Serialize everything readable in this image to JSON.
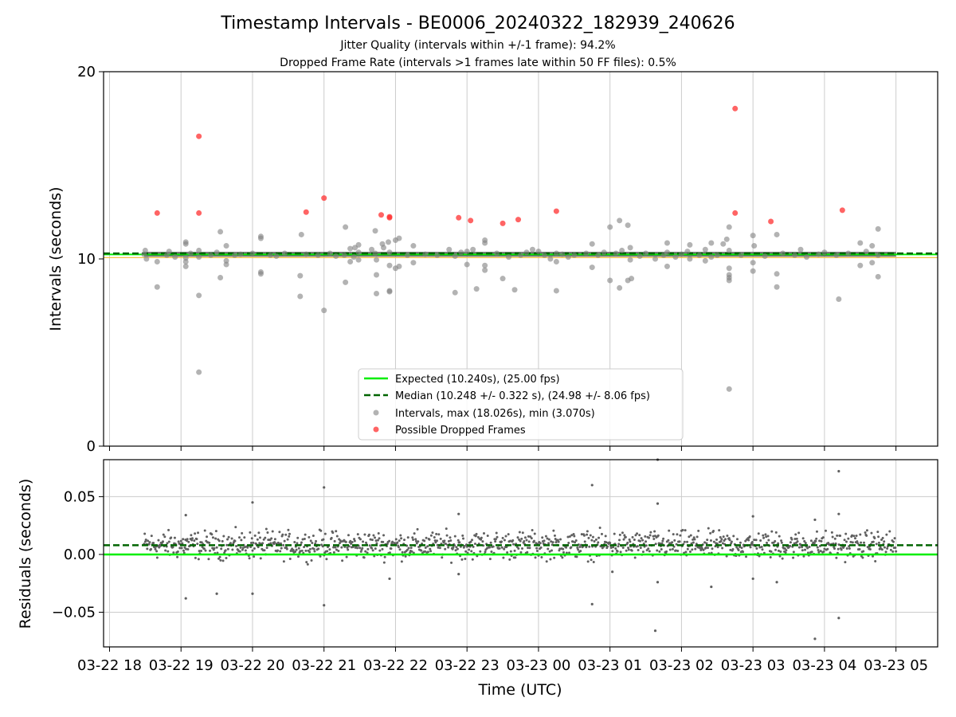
{
  "title": "Timestamp Intervals - BE0006_20240322_182939_240626",
  "subtitle_1": "Jitter Quality (intervals within +/-1 frame): 94.2%",
  "subtitle_2": "Dropped Frame Rate (intervals >1 frames late within 50 FF files): 0.5%",
  "colors": {
    "expected": "#00ee00",
    "median": "#006400",
    "intervals": "#808080",
    "dropped": "#ff3030",
    "tolerance": "#f5c242",
    "grid": "#cccccc",
    "residual_points": "#606060"
  },
  "chart_data": [
    {
      "type": "scatter",
      "name": "intervals",
      "ylabel": "Intervals (seconds)",
      "ylim": [
        0,
        20
      ],
      "yticks": [
        "0",
        "10",
        "20"
      ],
      "grid": "vertical",
      "legend_position": "lower-center",
      "expected_value": 10.24,
      "median_value": 10.248,
      "legend": {
        "expected": "Expected (10.240s), (25.00 fps)",
        "median": "Median (10.248 +/- 0.322 s), (24.98 +/- 8.06 fps)",
        "intervals": "Intervals, max (18.026s), min (3.070s)",
        "dropped": "Possible Dropped Frames"
      },
      "series": [
        {
          "name": "Intervals, max (18.026s), min (3.070s)",
          "points": [
            [
              "2024-03-22 18:29",
              10.25
            ],
            [
              "2024-03-22 18:30",
              10.45
            ],
            [
              "2024-03-22 18:31",
              10.0
            ],
            [
              "2024-03-22 18:40",
              8.5
            ],
            [
              "2024-03-22 18:40",
              9.85
            ],
            [
              "2024-03-22 18:48",
              10.2
            ],
            [
              "2024-03-22 18:50",
              10.4
            ],
            [
              "2024-03-22 18:55",
              10.1
            ],
            [
              "2024-03-22 19:04",
              10.9
            ],
            [
              "2024-03-22 19:04",
              10.8
            ],
            [
              "2024-03-22 19:04",
              10.05
            ],
            [
              "2024-03-22 19:04",
              9.85
            ],
            [
              "2024-03-22 19:04",
              9.6
            ],
            [
              "2024-03-22 19:08",
              10.3
            ],
            [
              "2024-03-22 19:15",
              3.95
            ],
            [
              "2024-03-22 19:15",
              8.05
            ],
            [
              "2024-03-22 19:15",
              10.1
            ],
            [
              "2024-03-22 19:15",
              10.45
            ],
            [
              "2024-03-22 19:25",
              10.2
            ],
            [
              "2024-03-22 19:30",
              10.35
            ],
            [
              "2024-03-22 19:33",
              9.0
            ],
            [
              "2024-03-22 19:33",
              11.45
            ],
            [
              "2024-03-22 19:38",
              10.7
            ],
            [
              "2024-03-22 19:38",
              9.7
            ],
            [
              "2024-03-22 19:38",
              9.9
            ],
            [
              "2024-03-22 19:45",
              10.2
            ],
            [
              "2024-03-22 19:50",
              10.25
            ],
            [
              "2024-03-22 20:00",
              10.3
            ],
            [
              "2024-03-22 20:07",
              11.2
            ],
            [
              "2024-03-22 20:07",
              11.1
            ],
            [
              "2024-03-22 20:07",
              9.3
            ],
            [
              "2024-03-22 20:07",
              9.2
            ],
            [
              "2024-03-22 20:15",
              10.2
            ],
            [
              "2024-03-22 20:20",
              10.15
            ],
            [
              "2024-03-22 20:27",
              10.3
            ],
            [
              "2024-03-22 20:40",
              8.0
            ],
            [
              "2024-03-22 20:40",
              9.1
            ],
            [
              "2024-03-22 20:41",
              11.3
            ],
            [
              "2024-03-22 20:45",
              10.25
            ],
            [
              "2024-03-22 20:55",
              10.2
            ],
            [
              "2024-03-22 21:00",
              7.25
            ],
            [
              "2024-03-22 21:05",
              10.3
            ],
            [
              "2024-03-22 21:10",
              10.15
            ],
            [
              "2024-03-22 21:17",
              10.2
            ],
            [
              "2024-03-22 21:18",
              8.75
            ],
            [
              "2024-03-22 21:18",
              11.7
            ],
            [
              "2024-03-22 21:22",
              10.55
            ],
            [
              "2024-03-22 21:22",
              9.85
            ],
            [
              "2024-03-22 21:25",
              10.1
            ],
            [
              "2024-03-22 21:26",
              10.6
            ],
            [
              "2024-03-22 21:29",
              10.75
            ],
            [
              "2024-03-22 21:29",
              10.35
            ],
            [
              "2024-03-22 21:29",
              9.95
            ],
            [
              "2024-03-22 21:40",
              10.5
            ],
            [
              "2024-03-22 21:43",
              11.5
            ],
            [
              "2024-03-22 21:43",
              10.3
            ],
            [
              "2024-03-22 21:44",
              9.15
            ],
            [
              "2024-03-22 21:44",
              8.15
            ],
            [
              "2024-03-22 21:44",
              9.95
            ],
            [
              "2024-03-22 21:49",
              10.8
            ],
            [
              "2024-03-22 21:50",
              10.6
            ],
            [
              "2024-03-22 21:54",
              10.9
            ],
            [
              "2024-03-22 21:55",
              8.25
            ],
            [
              "2024-03-22 21:55",
              8.3
            ],
            [
              "2024-03-22 21:55",
              9.65
            ],
            [
              "2024-03-22 21:55",
              10.35
            ],
            [
              "2024-03-22 22:00",
              11.0
            ],
            [
              "2024-03-22 22:00",
              9.5
            ],
            [
              "2024-03-22 22:03",
              11.1
            ],
            [
              "2024-03-22 22:03",
              9.6
            ],
            [
              "2024-03-22 22:10",
              10.2
            ],
            [
              "2024-03-22 22:15",
              10.7
            ],
            [
              "2024-03-22 22:15",
              9.8
            ],
            [
              "2024-03-22 22:25",
              10.25
            ],
            [
              "2024-03-22 22:35",
              10.2
            ],
            [
              "2024-03-22 22:45",
              10.5
            ],
            [
              "2024-03-22 22:50",
              8.2
            ],
            [
              "2024-03-22 22:50",
              10.15
            ],
            [
              "2024-03-22 22:55",
              10.35
            ],
            [
              "2024-03-22 23:00",
              9.7
            ],
            [
              "2024-03-22 23:00",
              10.4
            ],
            [
              "2024-03-22 23:05",
              10.5
            ],
            [
              "2024-03-22 23:08",
              8.4
            ],
            [
              "2024-03-22 23:15",
              11.0
            ],
            [
              "2024-03-22 23:15",
              10.85
            ],
            [
              "2024-03-22 23:15",
              9.65
            ],
            [
              "2024-03-22 23:15",
              9.4
            ],
            [
              "2024-03-22 23:25",
              10.3
            ],
            [
              "2024-03-22 23:30",
              8.95
            ],
            [
              "2024-03-22 23:35",
              10.1
            ],
            [
              "2024-03-22 23:40",
              8.35
            ],
            [
              "2024-03-22 23:45",
              10.2
            ],
            [
              "2024-03-22 23:50",
              10.35
            ],
            [
              "2024-03-22 23:55",
              10.5
            ],
            [
              "2024-03-23 00:00",
              10.4
            ],
            [
              "2024-03-23 00:05",
              10.2
            ],
            [
              "2024-03-23 00:10",
              10.0
            ],
            [
              "2024-03-23 00:15",
              10.3
            ],
            [
              "2024-03-23 00:15",
              8.3
            ],
            [
              "2024-03-23 00:15",
              9.85
            ],
            [
              "2024-03-23 00:20",
              10.25
            ],
            [
              "2024-03-23 00:25",
              10.1
            ],
            [
              "2024-03-23 00:30",
              10.2
            ],
            [
              "2024-03-23 00:40",
              10.3
            ],
            [
              "2024-03-23 00:45",
              10.8
            ],
            [
              "2024-03-23 00:45",
              9.55
            ],
            [
              "2024-03-23 00:50",
              10.2
            ],
            [
              "2024-03-23 00:55",
              10.35
            ],
            [
              "2024-03-23 01:00",
              11.7
            ],
            [
              "2024-03-23 01:00",
              8.85
            ],
            [
              "2024-03-23 01:05",
              10.3
            ],
            [
              "2024-03-23 01:08",
              12.05
            ],
            [
              "2024-03-23 01:08",
              8.45
            ],
            [
              "2024-03-23 01:10",
              10.45
            ],
            [
              "2024-03-23 01:15",
              11.8
            ],
            [
              "2024-03-23 01:15",
              8.85
            ],
            [
              "2024-03-23 01:17",
              10.6
            ],
            [
              "2024-03-23 01:17",
              9.95
            ],
            [
              "2024-03-23 01:18",
              8.95
            ],
            [
              "2024-03-23 01:25",
              10.15
            ],
            [
              "2024-03-23 01:30",
              10.3
            ],
            [
              "2024-03-23 01:38",
              10.0
            ],
            [
              "2024-03-23 01:45",
              10.2
            ],
            [
              "2024-03-23 01:48",
              10.85
            ],
            [
              "2024-03-23 01:48",
              9.6
            ],
            [
              "2024-03-23 01:48",
              10.35
            ],
            [
              "2024-03-23 01:55",
              10.1
            ],
            [
              "2024-03-23 02:00",
              10.25
            ],
            [
              "2024-03-23 02:05",
              10.4
            ],
            [
              "2024-03-23 02:07",
              10.75
            ],
            [
              "2024-03-23 02:07",
              10.0
            ],
            [
              "2024-03-23 02:15",
              10.2
            ],
            [
              "2024-03-23 02:20",
              10.5
            ],
            [
              "2024-03-23 02:20",
              9.9
            ],
            [
              "2024-03-23 02:25",
              10.85
            ],
            [
              "2024-03-23 02:25",
              10.1
            ],
            [
              "2024-03-23 02:30",
              10.2
            ],
            [
              "2024-03-23 02:35",
              10.8
            ],
            [
              "2024-03-23 02:38",
              11.05
            ],
            [
              "2024-03-23 02:40",
              11.7
            ],
            [
              "2024-03-23 02:40",
              9.5
            ],
            [
              "2024-03-23 02:40",
              9.15
            ],
            [
              "2024-03-23 02:40",
              9.0
            ],
            [
              "2024-03-23 02:40",
              8.85
            ],
            [
              "2024-03-23 02:40",
              3.05
            ],
            [
              "2024-03-23 02:40",
              10.45
            ],
            [
              "2024-03-23 02:50",
              10.2
            ],
            [
              "2024-03-23 03:00",
              11.25
            ],
            [
              "2024-03-23 03:00",
              9.8
            ],
            [
              "2024-03-23 03:00",
              9.35
            ],
            [
              "2024-03-23 03:01",
              10.7
            ],
            [
              "2024-03-23 03:10",
              10.15
            ],
            [
              "2024-03-23 03:20",
              11.3
            ],
            [
              "2024-03-23 03:20",
              9.2
            ],
            [
              "2024-03-23 03:20",
              8.5
            ],
            [
              "2024-03-23 03:25",
              10.3
            ],
            [
              "2024-03-23 03:35",
              10.2
            ],
            [
              "2024-03-23 03:40",
              10.5
            ],
            [
              "2024-03-23 03:45",
              10.1
            ],
            [
              "2024-03-23 03:55",
              10.25
            ],
            [
              "2024-03-23 04:00",
              10.35
            ],
            [
              "2024-03-23 04:10",
              10.2
            ],
            [
              "2024-03-23 04:12",
              7.85
            ],
            [
              "2024-03-23 04:20",
              10.3
            ],
            [
              "2024-03-23 04:30",
              10.85
            ],
            [
              "2024-03-23 04:30",
              9.65
            ],
            [
              "2024-03-23 04:35",
              10.4
            ],
            [
              "2024-03-23 04:40",
              10.7
            ],
            [
              "2024-03-23 04:40",
              9.8
            ],
            [
              "2024-03-23 04:45",
              11.6
            ],
            [
              "2024-03-23 04:45",
              9.05
            ],
            [
              "2024-03-23 04:45",
              10.2
            ]
          ]
        },
        {
          "name": "Possible Dropped Frames",
          "points": [
            [
              "2024-03-22 18:40",
              12.45
            ],
            [
              "2024-03-22 19:15",
              16.55
            ],
            [
              "2024-03-22 19:15",
              12.45
            ],
            [
              "2024-03-22 20:45",
              12.5
            ],
            [
              "2024-03-22 21:00",
              13.25
            ],
            [
              "2024-03-22 21:48",
              12.35
            ],
            [
              "2024-03-22 21:55",
              12.25
            ],
            [
              "2024-03-22 21:55",
              12.2
            ],
            [
              "2024-03-22 22:53",
              12.2
            ],
            [
              "2024-03-22 23:03",
              12.05
            ],
            [
              "2024-03-22 23:30",
              11.9
            ],
            [
              "2024-03-22 23:43",
              12.1
            ],
            [
              "2024-03-23 00:15",
              12.55
            ],
            [
              "2024-03-23 02:45",
              18.03
            ],
            [
              "2024-03-23 02:45",
              12.45
            ],
            [
              "2024-03-23 03:15",
              12.0
            ],
            [
              "2024-03-23 04:15",
              12.6
            ]
          ]
        }
      ]
    },
    {
      "type": "scatter",
      "name": "residuals",
      "xlabel": "Time (UTC)",
      "ylabel": "Residuals (seconds)",
      "ylim": [
        -0.08,
        0.082
      ],
      "yticks": [
        "0.05",
        "0.00",
        "−0.05"
      ],
      "xticks": [
        "03-22 18",
        "03-22 19",
        "03-22 20",
        "03-22 21",
        "03-22 22",
        "03-22 23",
        "03-23 00",
        "03-23 01",
        "03-23 02",
        "03-23 03",
        "03-23 04",
        "03-23 05"
      ],
      "x_range": [
        "2024-03-22 17:55",
        "2024-03-23 05:35"
      ],
      "data_range": [
        "2024-03-22 18:29",
        "2024-03-23 05:00"
      ],
      "grid": "both",
      "expected_value": 0.0,
      "median_value": 0.008,
      "typical_spread": [
        -0.01,
        0.025
      ],
      "outliers": [
        [
          "2024-03-22 19:04",
          -0.038
        ],
        [
          "2024-03-22 19:04",
          0.034
        ],
        [
          "2024-03-22 19:30",
          -0.034
        ],
        [
          "2024-03-22 20:00",
          0.045
        ],
        [
          "2024-03-22 20:00",
          -0.034
        ],
        [
          "2024-03-22 21:00",
          0.058
        ],
        [
          "2024-03-22 21:00",
          -0.044
        ],
        [
          "2024-03-22 21:55",
          -0.021
        ],
        [
          "2024-03-22 22:53",
          0.035
        ],
        [
          "2024-03-22 22:53",
          -0.017
        ],
        [
          "2024-03-23 00:45",
          0.06
        ],
        [
          "2024-03-23 00:45",
          -0.043
        ],
        [
          "2024-03-23 01:02",
          -0.015
        ],
        [
          "2024-03-23 01:38",
          -0.066
        ],
        [
          "2024-03-23 01:40",
          0.082
        ],
        [
          "2024-03-23 01:40",
          0.044
        ],
        [
          "2024-03-23 01:40",
          -0.024
        ],
        [
          "2024-03-23 02:25",
          -0.028
        ],
        [
          "2024-03-23 03:00",
          0.033
        ],
        [
          "2024-03-23 03:00",
          -0.021
        ],
        [
          "2024-03-23 03:20",
          -0.024
        ],
        [
          "2024-03-23 03:52",
          0.03
        ],
        [
          "2024-03-23 03:52",
          -0.073
        ],
        [
          "2024-03-23 04:12",
          0.072
        ],
        [
          "2024-03-23 04:12",
          -0.055
        ],
        [
          "2024-03-23 04:12",
          0.035
        ]
      ]
    }
  ]
}
